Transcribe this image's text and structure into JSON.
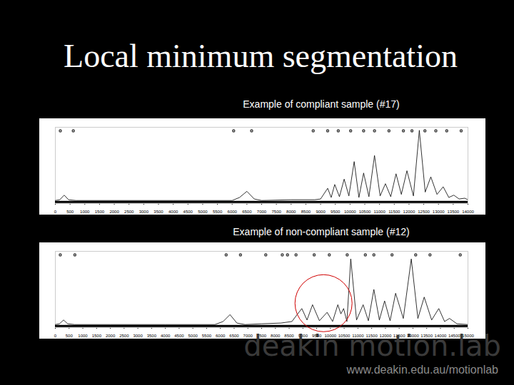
{
  "slide": {
    "title": "Local minimum segmentation",
    "brand": "deakin motion.lab",
    "url": "www.deakin.edu.au/motionlab"
  },
  "chart_data": [
    {
      "type": "line",
      "title": "Example of compliant sample (#17)",
      "color": "#000000",
      "tick_labels": "x",
      "xlim": [
        0,
        14000
      ],
      "ylim": [
        0,
        100
      ],
      "xticks": [
        0,
        500,
        1000,
        1500,
        2000,
        2500,
        3000,
        3500,
        4000,
        4500,
        5000,
        5500,
        6000,
        6500,
        7000,
        7500,
        8000,
        8500,
        9000,
        9500,
        10000,
        10500,
        11000,
        11500,
        12000,
        12500,
        13000,
        13500,
        14000
      ],
      "yticks": [],
      "x": [
        0,
        150,
        300,
        450,
        700,
        2000,
        4000,
        6000,
        6250,
        6500,
        6750,
        7000,
        8000,
        8800,
        9000,
        9240,
        9360,
        9480,
        9640,
        9800,
        9960,
        10140,
        10300,
        10460,
        10640,
        10830,
        11020,
        11200,
        11380,
        11560,
        11740,
        11930,
        12150,
        12350,
        12550,
        12740,
        12950,
        13160,
        13350,
        13520,
        13700,
        13890,
        14000
      ],
      "values": [
        4,
        5,
        11,
        5,
        4,
        4,
        4,
        4,
        8,
        16,
        6,
        4,
        5,
        5,
        6,
        20,
        8,
        25,
        9,
        32,
        10,
        55,
        8,
        40,
        9,
        63,
        10,
        26,
        9,
        39,
        12,
        43,
        10,
        96,
        15,
        35,
        12,
        22,
        8,
        11,
        6,
        7,
        5
      ],
      "threshold": 2,
      "minima": [
        170,
        610,
        6050,
        6660,
        8750,
        9240,
        9600,
        10020,
        10460,
        10830,
        11320,
        11810,
        12100,
        12540,
        12910,
        13280,
        13770
      ]
    },
    {
      "type": "line",
      "title": "Example of non-compliant sample (#12)",
      "color": "#000000",
      "tick_labels": "x",
      "xlim": [
        0,
        15000
      ],
      "ylim": [
        0,
        100
      ],
      "xticks": [
        0,
        500,
        1000,
        1500,
        2000,
        2500,
        3000,
        3500,
        4000,
        4500,
        5000,
        5500,
        6000,
        6500,
        7000,
        7500,
        8000,
        8500,
        9000,
        9500,
        10000,
        10500,
        11000,
        11500,
        12000,
        12500,
        13000,
        13500,
        14000,
        14500,
        15000
      ],
      "yticks": [],
      "x": [
        0,
        150,
        300,
        450,
        700,
        2000,
        4000,
        5800,
        6100,
        6350,
        6600,
        6900,
        7500,
        8200,
        8600,
        8960,
        9150,
        9350,
        9600,
        9880,
        10080,
        10270,
        10380,
        10480,
        10600,
        10740,
        10950,
        11190,
        11380,
        11580,
        11780,
        11970,
        12170,
        12370,
        12650,
        12940,
        13180,
        13410,
        13680,
        13940,
        14150,
        14330,
        14600,
        15000
      ],
      "values": [
        4,
        5,
        10,
        5,
        4,
        4,
        4,
        4,
        8,
        17,
        6,
        4,
        5,
        6,
        8,
        25,
        10,
        30,
        9,
        20,
        8,
        30,
        18,
        25,
        8,
        90,
        10,
        30,
        9,
        50,
        10,
        35,
        9,
        45,
        12,
        90,
        12,
        40,
        10,
        25,
        8,
        12,
        5,
        4
      ],
      "threshold": 2,
      "minima": [
        180,
        710,
        6210,
        6730,
        7650,
        8250,
        8440,
        8750,
        9410,
        9960,
        10610,
        11270,
        11580,
        12240,
        13100,
        13620,
        14720
      ],
      "highlight": {
        "x": 9750,
        "y": 32,
        "color": "#d00000"
      }
    }
  ]
}
